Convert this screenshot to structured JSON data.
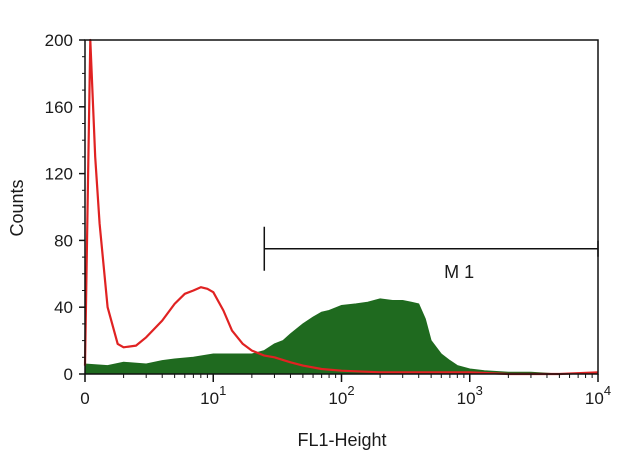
{
  "chart_data": {
    "type": "area",
    "xlabel": "FL1-Height",
    "ylabel": "Counts",
    "x_scale": "log",
    "xlim": [
      0,
      10000
    ],
    "ylim": [
      0,
      200
    ],
    "grid": false,
    "x_ticks": [
      {
        "value": 0,
        "base": "0",
        "exp": ""
      },
      {
        "value": 10,
        "base": "10",
        "exp": "1"
      },
      {
        "value": 100,
        "base": "10",
        "exp": "2"
      },
      {
        "value": 1000,
        "base": "10",
        "exp": "3"
      },
      {
        "value": 10000,
        "base": "10",
        "exp": "4"
      }
    ],
    "y_ticks": [
      0,
      40,
      80,
      120,
      160,
      200
    ],
    "gate": {
      "label": "M 1",
      "x_start": 25,
      "x_end": 10000,
      "y": 75
    },
    "series": [
      {
        "color": "#1f6a1f",
        "style": "filled",
        "x": [
          1,
          1.5,
          2,
          3,
          4,
          5,
          7,
          10,
          15,
          20,
          25,
          30,
          35,
          40,
          50,
          60,
          70,
          80,
          100,
          130,
          160,
          200,
          250,
          300,
          350,
          400,
          450,
          500,
          600,
          700,
          800,
          1000,
          1300,
          2000,
          3000,
          5000,
          10000
        ],
        "y": [
          6,
          5,
          7,
          6,
          8,
          9,
          10,
          12,
          12,
          12,
          14,
          18,
          20,
          24,
          30,
          34,
          37,
          38,
          41,
          42,
          43,
          45,
          44,
          44,
          43,
          42,
          33,
          20,
          12,
          8,
          5,
          3,
          2,
          1,
          1,
          0,
          0
        ]
      },
      {
        "color": "#e02222",
        "style": "line",
        "x": [
          1,
          1.1,
          1.2,
          1.3,
          1.5,
          1.8,
          2,
          2.5,
          3,
          4,
          5,
          6,
          7,
          8,
          9,
          10,
          12,
          14,
          17,
          20,
          25,
          30,
          40,
          50,
          70,
          100,
          200,
          500,
          1000,
          2000,
          5000,
          10000
        ],
        "y": [
          5,
          200,
          130,
          90,
          40,
          18,
          16,
          17,
          22,
          32,
          42,
          48,
          50,
          52,
          51,
          49,
          38,
          26,
          18,
          14,
          11,
          10,
          7,
          5,
          3,
          2,
          1,
          1,
          1,
          0,
          0,
          1
        ]
      }
    ]
  }
}
